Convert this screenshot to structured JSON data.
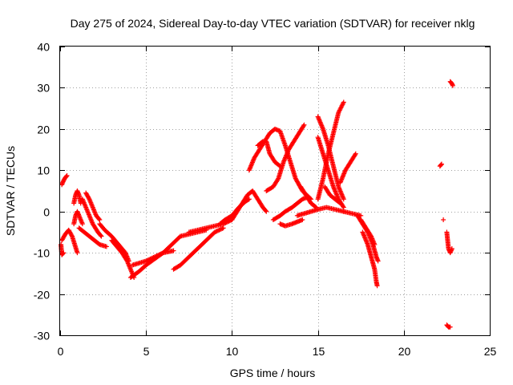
{
  "chart_data": {
    "type": "scatter",
    "title": "Day 275 of 2024, Sidereal Day-to-day VTEC variation (SDTVAR) for receiver nklg",
    "xlabel": "GPS time / hours",
    "ylabel": "SDTVAR / TECUs",
    "xlim": [
      0,
      25
    ],
    "ylim": [
      -30,
      40
    ],
    "xticks": [
      "0",
      "5",
      "10",
      "15",
      "20",
      "25"
    ],
    "yticks": [
      "40",
      "30",
      "20",
      "10",
      "0",
      "-10",
      "-20",
      "-30"
    ],
    "grid": true,
    "marker": "+",
    "color": "#ff0000",
    "series": [
      {
        "name": "SDTVAR",
        "segments": [
          [
            [
              0.1,
              6.5
            ],
            [
              0.2,
              7.5
            ],
            [
              0.3,
              8.2
            ],
            [
              0.4,
              8.7
            ]
          ],
          [
            [
              0.05,
              -8
            ],
            [
              0.1,
              -10.5
            ],
            [
              0.2,
              -10
            ]
          ],
          [
            [
              0.1,
              -7
            ],
            [
              0.3,
              -5.5
            ],
            [
              0.5,
              -4.5
            ],
            [
              0.7,
              -6
            ],
            [
              0.85,
              -8
            ],
            [
              1.0,
              -10
            ]
          ],
          [
            [
              0.8,
              2
            ],
            [
              0.9,
              4
            ],
            [
              1.0,
              5
            ],
            [
              1.1,
              4
            ],
            [
              1.2,
              2
            ]
          ],
          [
            [
              0.8,
              -3
            ],
            [
              0.9,
              -1
            ],
            [
              1.0,
              0
            ],
            [
              1.1,
              -1
            ],
            [
              1.3,
              -3
            ]
          ],
          [
            [
              1.1,
              -4
            ],
            [
              1.4,
              -5
            ],
            [
              1.7,
              -6
            ],
            [
              2.0,
              -7
            ],
            [
              2.3,
              -8
            ],
            [
              2.7,
              -8.5
            ]
          ],
          [
            [
              1.3,
              3
            ],
            [
              1.5,
              1
            ],
            [
              1.7,
              -1
            ],
            [
              1.9,
              -3
            ],
            [
              2.2,
              -5
            ],
            [
              2.4,
              -6
            ]
          ],
          [
            [
              1.5,
              4.5
            ],
            [
              1.7,
              3
            ],
            [
              1.9,
              1
            ],
            [
              2.1,
              -1
            ],
            [
              2.3,
              -2
            ]
          ],
          [
            [
              2.3,
              -3
            ],
            [
              2.6,
              -4.5
            ],
            [
              3.0,
              -6
            ],
            [
              3.4,
              -8
            ],
            [
              3.8,
              -10
            ],
            [
              4.0,
              -12
            ]
          ],
          [
            [
              3.0,
              -7
            ],
            [
              3.3,
              -8.5
            ],
            [
              3.6,
              -10
            ],
            [
              3.9,
              -12
            ],
            [
              4.1,
              -14
            ],
            [
              4.3,
              -16
            ]
          ],
          [
            [
              4.1,
              -16
            ],
            [
              4.6,
              -14.5
            ],
            [
              5.0,
              -13
            ],
            [
              5.5,
              -11.5
            ],
            [
              6.0,
              -10
            ],
            [
              6.5,
              -8
            ],
            [
              7.0,
              -6
            ]
          ],
          [
            [
              4.2,
              -13
            ],
            [
              4.6,
              -12.5
            ],
            [
              5.0,
              -12
            ],
            [
              5.5,
              -11
            ],
            [
              6.0,
              -10
            ],
            [
              6.6,
              -9.5
            ]
          ],
          [
            [
              6.6,
              -14
            ],
            [
              7.0,
              -13
            ],
            [
              7.5,
              -11
            ],
            [
              8.0,
              -9
            ],
            [
              8.5,
              -7
            ],
            [
              9.0,
              -5
            ],
            [
              9.5,
              -4
            ]
          ],
          [
            [
              7.5,
              -5
            ],
            [
              8.0,
              -4.5
            ],
            [
              8.5,
              -4
            ],
            [
              9.0,
              -3.5
            ],
            [
              9.5,
              -3
            ],
            [
              10.0,
              -2
            ]
          ],
          [
            [
              7.0,
              -6
            ],
            [
              7.5,
              -5.5
            ],
            [
              8.0,
              -5
            ],
            [
              8.5,
              -4.5
            ]
          ],
          [
            [
              9.3,
              -3
            ],
            [
              9.6,
              -2
            ],
            [
              10.0,
              -1
            ],
            [
              10.4,
              1
            ],
            [
              10.8,
              2.5
            ],
            [
              11.0,
              3
            ]
          ],
          [
            [
              10.0,
              -2
            ],
            [
              10.3,
              0
            ],
            [
              10.6,
              2
            ],
            [
              10.9,
              4
            ],
            [
              11.2,
              5
            ],
            [
              11.5,
              3
            ],
            [
              11.8,
              1
            ],
            [
              12.0,
              0
            ]
          ],
          [
            [
              11.0,
              10
            ],
            [
              11.3,
              13
            ],
            [
              11.6,
              15
            ],
            [
              11.9,
              17
            ],
            [
              12.2,
              19
            ],
            [
              12.5,
              20
            ],
            [
              12.8,
              19.5
            ],
            [
              13.1,
              16
            ],
            [
              13.4,
              12
            ],
            [
              13.7,
              8
            ],
            [
              14.1,
              5
            ],
            [
              14.6,
              3
            ]
          ],
          [
            [
              11.5,
              16
            ],
            [
              11.8,
              17
            ]
          ],
          [
            [
              12.0,
              5
            ],
            [
              12.4,
              6
            ],
            [
              12.7,
              8
            ],
            [
              13.0,
              12
            ],
            [
              13.3,
              15
            ],
            [
              13.6,
              17
            ],
            [
              13.9,
              19
            ],
            [
              14.2,
              21
            ]
          ],
          [
            [
              12.0,
              17
            ],
            [
              12.2,
              14
            ],
            [
              12.5,
              12
            ],
            [
              12.8,
              11
            ]
          ],
          [
            [
              12.4,
              -2
            ],
            [
              12.8,
              -1
            ],
            [
              13.1,
              0
            ],
            [
              13.5,
              1
            ],
            [
              13.8,
              2
            ],
            [
              14.1,
              3
            ],
            [
              14.4,
              3.5
            ]
          ],
          [
            [
              12.8,
              -3
            ],
            [
              13.1,
              -3.5
            ],
            [
              13.5,
              -3
            ],
            [
              13.8,
              -2.5
            ],
            [
              14.1,
              -2
            ]
          ],
          [
            [
              13.8,
              -1
            ],
            [
              14.2,
              -0.5
            ],
            [
              14.6,
              0
            ],
            [
              15.0,
              0.5
            ],
            [
              15.5,
              1
            ],
            [
              16.0,
              0.5
            ],
            [
              16.5,
              0
            ]
          ],
          [
            [
              14.0,
              6
            ],
            [
              14.3,
              4
            ],
            [
              14.6,
              2
            ],
            [
              14.9,
              1
            ]
          ],
          [
            [
              15.0,
              23
            ],
            [
              15.3,
              20
            ],
            [
              15.6,
              16
            ],
            [
              15.9,
              11
            ],
            [
              16.2,
              6
            ],
            [
              16.5,
              3
            ]
          ],
          [
            [
              15.0,
              3
            ],
            [
              15.3,
              8
            ],
            [
              15.6,
              14
            ],
            [
              15.9,
              19
            ],
            [
              16.2,
              24
            ],
            [
              16.5,
              26.5
            ]
          ],
          [
            [
              15.0,
              18
            ],
            [
              15.3,
              14
            ],
            [
              15.6,
              10
            ],
            [
              15.9,
              6
            ],
            [
              16.2,
              3
            ],
            [
              16.5,
              1
            ]
          ],
          [
            [
              15.4,
              6
            ],
            [
              15.7,
              4
            ],
            [
              16.0,
              3
            ],
            [
              16.3,
              2
            ]
          ],
          [
            [
              16.3,
              7
            ],
            [
              16.6,
              10
            ],
            [
              16.9,
              12
            ],
            [
              17.2,
              14
            ]
          ],
          [
            [
              16.5,
              0
            ],
            [
              17.0,
              -0.5
            ],
            [
              17.5,
              -1
            ]
          ],
          [
            [
              17.3,
              -1
            ],
            [
              17.6,
              -3
            ],
            [
              17.9,
              -5
            ],
            [
              18.2,
              -8
            ],
            [
              18.4,
              -11
            ],
            [
              18.5,
              -12
            ]
          ],
          [
            [
              17.5,
              -2
            ],
            [
              17.8,
              -4
            ],
            [
              18.1,
              -6
            ],
            [
              18.3,
              -8
            ]
          ],
          [
            [
              17.6,
              -5
            ],
            [
              17.9,
              -8
            ],
            [
              18.1,
              -11
            ],
            [
              18.3,
              -14
            ],
            [
              18.4,
              -17
            ],
            [
              18.45,
              -18
            ]
          ],
          [
            [
              22.1,
              11
            ],
            [
              22.2,
              11.5
            ]
          ],
          [
            [
              22.3,
              -2
            ]
          ],
          [
            [
              22.5,
              -5
            ],
            [
              22.55,
              -7
            ],
            [
              22.6,
              -9
            ],
            [
              22.7,
              -10
            ],
            [
              22.8,
              -9
            ]
          ],
          [
            [
              22.7,
              31.5
            ],
            [
              22.8,
              31
            ],
            [
              22.85,
              30.5
            ]
          ],
          [
            [
              22.5,
              -27.5
            ],
            [
              22.6,
              -28
            ],
            [
              22.7,
              -28
            ]
          ]
        ]
      }
    ]
  }
}
